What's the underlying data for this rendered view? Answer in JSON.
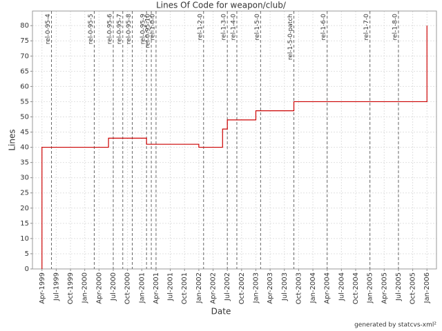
{
  "chart_data": {
    "type": "line",
    "title": "Lines Of Code for weapon/club/",
    "x_label": "Date",
    "y_label": "Lines",
    "footer": "generated by statcvs-xml²",
    "step": true,
    "grid": true,
    "xlim": [
      "1999-02",
      "2006-03"
    ],
    "ylim": [
      0,
      84.8
    ],
    "yticks": [
      0,
      5,
      10,
      15,
      20,
      25,
      30,
      35,
      40,
      45,
      50,
      55,
      60,
      65,
      70,
      75,
      80
    ],
    "xticks": [
      {
        "value": "1999-04",
        "label": "Apr-1999"
      },
      {
        "value": "1999-07",
        "label": "Jul-1999"
      },
      {
        "value": "1999-10",
        "label": "Oct-1999"
      },
      {
        "value": "2000-01",
        "label": "Jan-2000"
      },
      {
        "value": "2000-04",
        "label": "Apr-2000"
      },
      {
        "value": "2000-07",
        "label": "Jul-2000"
      },
      {
        "value": "2000-10",
        "label": "Oct-2000"
      },
      {
        "value": "2001-01",
        "label": "Jan-2001"
      },
      {
        "value": "2001-04",
        "label": "Apr-2001"
      },
      {
        "value": "2001-07",
        "label": "Jul-2001"
      },
      {
        "value": "2001-10",
        "label": "Oct-2001"
      },
      {
        "value": "2002-01",
        "label": "Jan-2002"
      },
      {
        "value": "2002-04",
        "label": "Apr-2002"
      },
      {
        "value": "2002-07",
        "label": "Jul-2002"
      },
      {
        "value": "2002-10",
        "label": "Oct-2002"
      },
      {
        "value": "2003-01",
        "label": "Jan-2003"
      },
      {
        "value": "2003-04",
        "label": "Apr-2003"
      },
      {
        "value": "2003-07",
        "label": "Jul-2003"
      },
      {
        "value": "2003-10",
        "label": "Oct-2003"
      },
      {
        "value": "2004-01",
        "label": "Jan-2004"
      },
      {
        "value": "2004-04",
        "label": "Apr-2004"
      },
      {
        "value": "2004-07",
        "label": "Jul-2004"
      },
      {
        "value": "2004-10",
        "label": "Oct-2004"
      },
      {
        "value": "2005-01",
        "label": "Jan-2005"
      },
      {
        "value": "2005-04",
        "label": "Apr-2005"
      },
      {
        "value": "2005-07",
        "label": "Jul-2005"
      },
      {
        "value": "2005-10",
        "label": "Oct-2005"
      },
      {
        "value": "2006-01",
        "label": "Jan-2006"
      }
    ],
    "series": [
      {
        "color": "#cc0000",
        "x": [
          "1999-04",
          "1999-04",
          "2000-06",
          "2001-02",
          "2002-01",
          "2002-06",
          "2002-07",
          "2003-01",
          "2003-09",
          "2006-01"
        ],
        "values": [
          0,
          40,
          43,
          41,
          40,
          46,
          49,
          52,
          55,
          80
        ]
      }
    ],
    "markers": [
      {
        "x": "1999-06",
        "label": "rel-0-95-4"
      },
      {
        "x": "2000-03",
        "label": "rel-0-95-5"
      },
      {
        "x": "2000-07",
        "label": "rel-0-95-6"
      },
      {
        "x": "2000-09",
        "label": "rel-0-95-7"
      },
      {
        "x": "2000-11",
        "label": "rel-0-95-8"
      },
      {
        "x": "2001-02",
        "label": "rel-0-95-9"
      },
      {
        "x": "2001-03",
        "label": "rel-0-95-10"
      },
      {
        "x": "2001-04",
        "label": "rel-1-0-0"
      },
      {
        "x": "2002-02",
        "label": "rel-1-2-0"
      },
      {
        "x": "2002-07",
        "label": "rel-1-3-0"
      },
      {
        "x": "2002-09",
        "label": "rel-1-4-0"
      },
      {
        "x": "2003-02",
        "label": "rel-1-5-0"
      },
      {
        "x": "2003-09",
        "label": "rel-1-5-0-patch"
      },
      {
        "x": "2004-04",
        "label": "rel-1-6-0"
      },
      {
        "x": "2005-01",
        "label": "rel-1-7-0"
      },
      {
        "x": "2005-07",
        "label": "rel-1-8-0"
      }
    ]
  }
}
